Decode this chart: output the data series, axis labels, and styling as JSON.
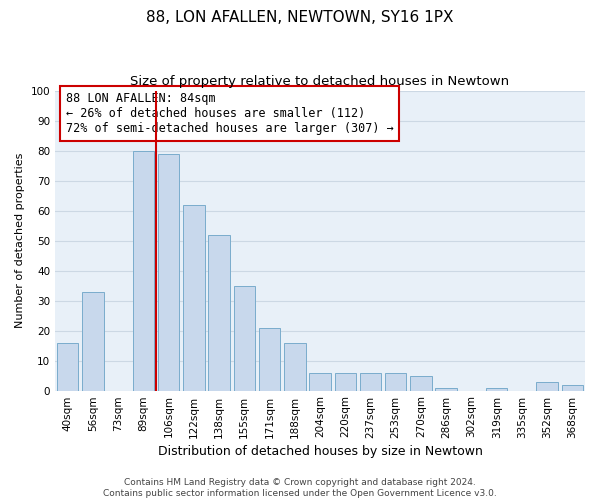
{
  "title": "88, LON AFALLEN, NEWTOWN, SY16 1PX",
  "subtitle": "Size of property relative to detached houses in Newtown",
  "xlabel": "Distribution of detached houses by size in Newtown",
  "ylabel": "Number of detached properties",
  "bin_labels": [
    "40sqm",
    "56sqm",
    "73sqm",
    "89sqm",
    "106sqm",
    "122sqm",
    "138sqm",
    "155sqm",
    "171sqm",
    "188sqm",
    "204sqm",
    "220sqm",
    "237sqm",
    "253sqm",
    "270sqm",
    "286sqm",
    "302sqm",
    "319sqm",
    "335sqm",
    "352sqm",
    "368sqm"
  ],
  "bar_heights": [
    16,
    33,
    0,
    80,
    79,
    62,
    52,
    35,
    21,
    16,
    6,
    6,
    6,
    6,
    5,
    1,
    0,
    1,
    0,
    3,
    2
  ],
  "bar_color": "#c8d8ec",
  "bar_edge_color": "#7aaccc",
  "vline_x": 3.5,
  "vline_color": "#cc0000",
  "annotation_text_line1": "88 LON AFALLEN: 84sqm",
  "annotation_text_line2": "← 26% of detached houses are smaller (112)",
  "annotation_text_line3": "72% of semi-detached houses are larger (307) →",
  "ylim": [
    0,
    100
  ],
  "yticks": [
    0,
    10,
    20,
    30,
    40,
    50,
    60,
    70,
    80,
    90,
    100
  ],
  "grid_color": "#ccd8e4",
  "bg_color": "#e8f0f8",
  "footer_line1": "Contains HM Land Registry data © Crown copyright and database right 2024.",
  "footer_line2": "Contains public sector information licensed under the Open Government Licence v3.0.",
  "title_fontsize": 11,
  "subtitle_fontsize": 9.5,
  "xlabel_fontsize": 9,
  "ylabel_fontsize": 8,
  "tick_fontsize": 7.5,
  "annotation_fontsize": 8.5,
  "footer_fontsize": 6.5
}
